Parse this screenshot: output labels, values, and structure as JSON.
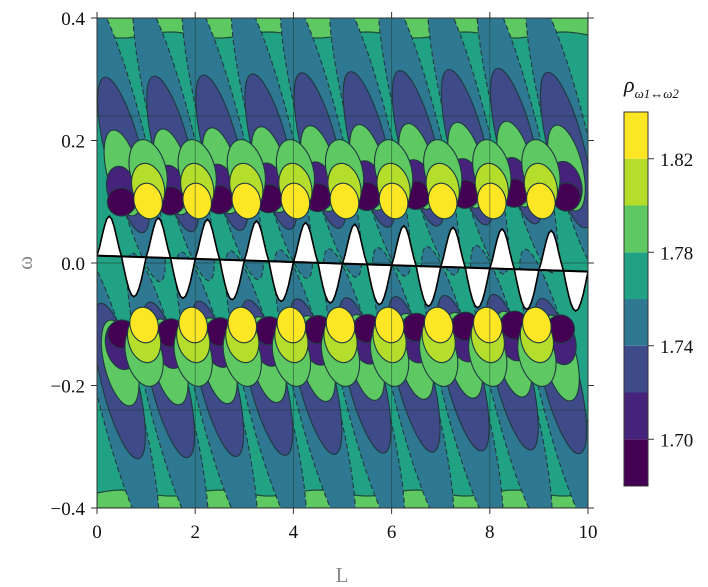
{
  "chart_data": {
    "type": "heatmap",
    "title": "",
    "xlabel": "L",
    "ylabel": "ω",
    "xlim": [
      0,
      10
    ],
    "ylim": [
      -0.4,
      0.4
    ],
    "x_ticks": [
      "0",
      "2",
      "4",
      "6",
      "8",
      "10"
    ],
    "y_ticks": [
      "0.4",
      "0.2",
      "0.0",
      "−0.2",
      "−0.4"
    ],
    "grid": true,
    "colorbar": {
      "title": "ρ",
      "subscript": "ω1↔ω2",
      "tick_labels": [
        "1.82",
        "1.78",
        "1.74",
        "1.70"
      ],
      "bands": [
        {
          "range": [
            1.68,
            1.7
          ],
          "color": "#440154"
        },
        {
          "range": [
            1.7,
            1.72
          ],
          "color": "#46237a"
        },
        {
          "range": [
            1.72,
            1.74
          ],
          "color": "#3f4a89"
        },
        {
          "range": [
            1.74,
            1.76
          ],
          "color": "#2e7891"
        },
        {
          "range": [
            1.76,
            1.78
          ],
          "color": "#22a284"
        },
        {
          "range": [
            1.78,
            1.8
          ],
          "color": "#5ec962"
        },
        {
          "range": [
            1.8,
            1.82
          ],
          "color": "#b5dd2b"
        },
        {
          "range": [
            1.82,
            1.84
          ],
          "color": "#fde725"
        }
      ]
    },
    "background_value_band": [
      1.76,
      1.78
    ],
    "edge_band": [
      1.78,
      1.8
    ],
    "lobe_period_L": 1.0,
    "lobe_centers_L": [
      1,
      2,
      3,
      4,
      5,
      6,
      7,
      8,
      9
    ],
    "undefined_region_color": "#ffffff"
  }
}
